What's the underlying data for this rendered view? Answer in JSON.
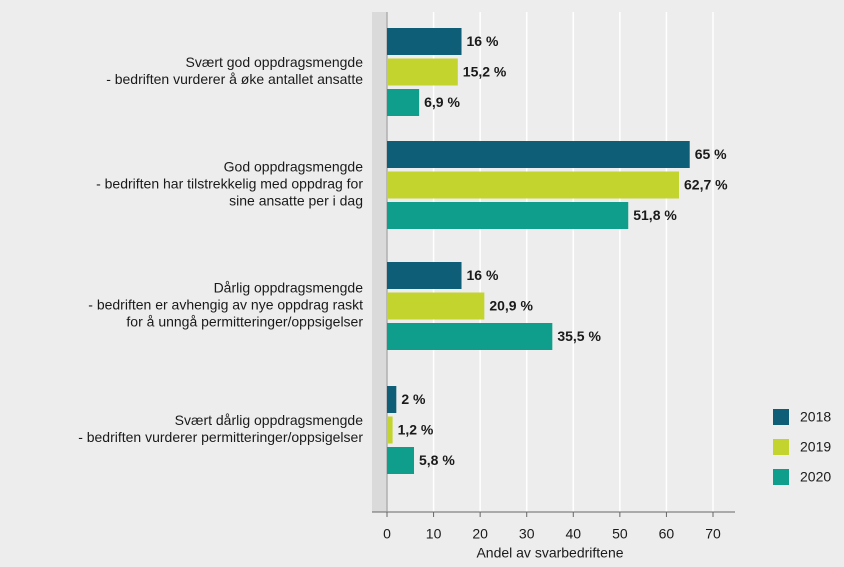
{
  "chart_data": {
    "type": "bar",
    "orientation": "horizontal",
    "categories": [
      [
        "Svært god oppdragsmengde",
        "- bedriften vurderer å øke antallet ansatte"
      ],
      [
        "God oppdragsmengde",
        "- bedriften har tilstrekkelig med oppdrag for",
        "sine ansatte per i dag"
      ],
      [
        "Dårlig oppdragsmengde",
        "- bedriften er avhengig av nye oppdrag raskt",
        "for å unngå permitteringer/oppsigelser"
      ],
      [
        "Svært dårlig oppdragsmengde",
        "- bedriften vurderer permitteringer/oppsigelser"
      ]
    ],
    "series": [
      {
        "name": "2018",
        "color": "#0f5e78",
        "values": [
          16,
          65,
          16,
          2
        ],
        "value_labels": [
          "16 %",
          "65 %",
          "16 %",
          "2 %"
        ]
      },
      {
        "name": "2019",
        "color": "#c4d42f",
        "values": [
          15.2,
          62.7,
          20.9,
          1.2
        ],
        "value_labels": [
          "15,2 %",
          "62,7 %",
          "20,9 %",
          "1,2 %"
        ]
      },
      {
        "name": "2020",
        "color": "#0f9e8b",
        "values": [
          6.9,
          51.8,
          35.5,
          5.8
        ],
        "value_labels": [
          "6,9 %",
          "51,8 %",
          "35,5 %",
          "5,8 %"
        ]
      }
    ],
    "xlabel": "Andel av svarbedriftene",
    "xlim": [
      0,
      70
    ],
    "xticks": [
      0,
      10,
      20,
      30,
      40,
      50,
      60,
      70
    ],
    "grid": true,
    "legend": "bottom-right"
  }
}
